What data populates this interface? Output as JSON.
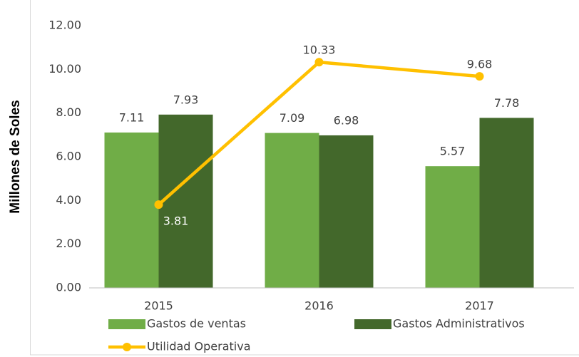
{
  "chart_data": {
    "type": "bar",
    "y_axis_label": "Millones de Soles",
    "categories": [
      "2015",
      "2016",
      "2017"
    ],
    "series": [
      {
        "name": "Gastos de ventas",
        "color": "#70ad47",
        "values": [
          7.11,
          7.09,
          5.57
        ]
      },
      {
        "name": "Gastos Administrativos",
        "color": "#43682b",
        "values": [
          7.93,
          6.98,
          7.78
        ]
      },
      {
        "name": "Utilidad Operativa",
        "color": "#ffc000",
        "type": "line",
        "values": [
          3.81,
          10.33,
          9.68
        ]
      }
    ],
    "ylim": [
      0,
      12
    ],
    "yticks": [
      {
        "value": 0,
        "label": "0.00"
      },
      {
        "value": 2,
        "label": "2.00"
      },
      {
        "value": 4,
        "label": "4.00"
      },
      {
        "value": 6,
        "label": "6.00"
      },
      {
        "value": 8,
        "label": "8.00"
      },
      {
        "value": 10,
        "label": "10.00"
      },
      {
        "value": 12,
        "label": "12.00"
      }
    ],
    "grid": false,
    "legend": "bottom"
  }
}
